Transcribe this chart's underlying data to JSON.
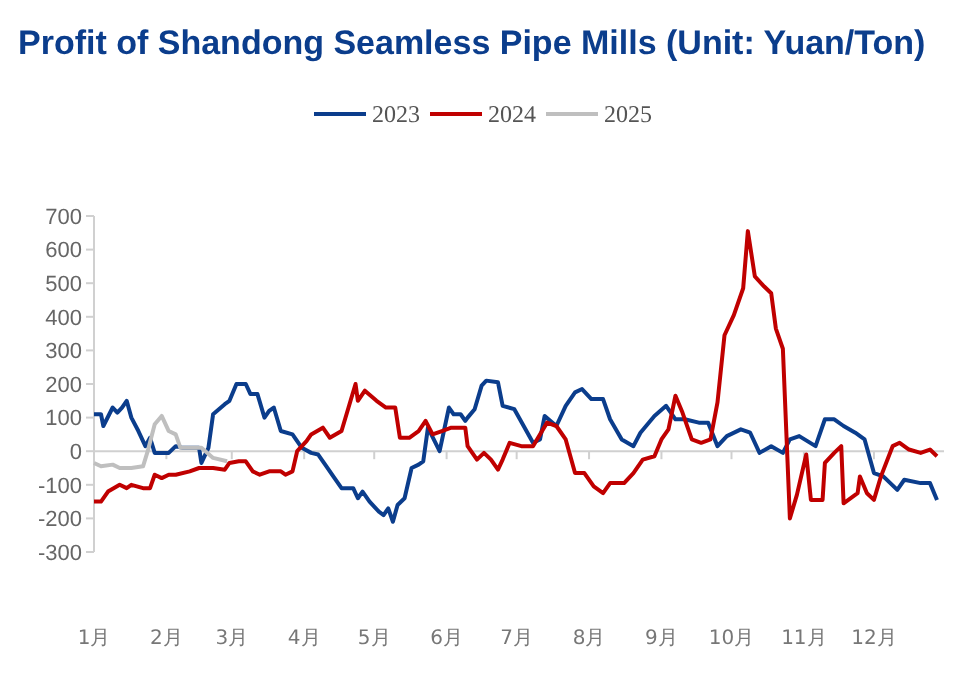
{
  "chart_data": {
    "type": "line",
    "title": "Profit of Shandong Seamless Pipe Mills (Unit: Yuan/Ton)",
    "xlim": [
      "--01-01",
      "--12-31"
    ],
    "xticks": [
      {
        "value": "--01-01",
        "label": "1月"
      },
      {
        "value": "--02-01",
        "label": "2月"
      },
      {
        "value": "--03-01",
        "label": "3月"
      },
      {
        "value": "--04-01",
        "label": "4月"
      },
      {
        "value": "--05-01",
        "label": "5月"
      },
      {
        "value": "--06-01",
        "label": "6月"
      },
      {
        "value": "--07-01",
        "label": "7月"
      },
      {
        "value": "--08-01",
        "label": "8月"
      },
      {
        "value": "--09-01",
        "label": "9月"
      },
      {
        "value": "--10-01",
        "label": "10月"
      },
      {
        "value": "--11-01",
        "label": "11月"
      },
      {
        "value": "--12-01",
        "label": "12月"
      }
    ],
    "ylim": [
      -300,
      700
    ],
    "yticks": [
      -300,
      -200,
      -100,
      0,
      100,
      200,
      300,
      400,
      500,
      600,
      700
    ],
    "ref_lines": [
      {
        "axis": "y",
        "value": 0,
        "color": "#d0d0d0",
        "line_style": "solid"
      }
    ],
    "grid": false,
    "legend": "top",
    "marker": "none",
    "line_style": "solid",
    "series": [
      {
        "name": "2023",
        "color": "#0b3d8c",
        "x": [
          "--01-01",
          "--01-04",
          "--01-05",
          "--01-09",
          "--01-11",
          "--01-13",
          "--01-15",
          "--01-17",
          "--01-20",
          "--01-23",
          "--01-25",
          "--01-27",
          "--02-02",
          "--02-05",
          "--02-08",
          "--02-15",
          "--02-16",
          "--02-19",
          "--02-21",
          "--02-26",
          "--02-28",
          "--03-03",
          "--03-07",
          "--03-09",
          "--03-12",
          "--03-15",
          "--03-17",
          "--03-19",
          "--03-22",
          "--03-27",
          "--03-29",
          "--03-31",
          "--04-04",
          "--04-07",
          "--04-10",
          "--04-14",
          "--04-17",
          "--04-22",
          "--04-24",
          "--04-26",
          "--04-29",
          "--05-03",
          "--05-05",
          "--05-07",
          "--05-09",
          "--05-11",
          "--05-14",
          "--05-17",
          "--05-20",
          "--05-22",
          "--05-24",
          "--05-29",
          "--06-02",
          "--06-04",
          "--06-07",
          "--06-09",
          "--06-10",
          "--06-13",
          "--06-16",
          "--06-18",
          "--06-23",
          "--06-25",
          "--06-30",
          "--07-04",
          "--07-08",
          "--07-11",
          "--07-13",
          "--07-18",
          "--07-22",
          "--07-26",
          "--07-29",
          "--08-02",
          "--08-07",
          "--08-10",
          "--08-15",
          "--08-20",
          "--08-23",
          "--08-29",
          "--09-03",
          "--09-07",
          "--09-11",
          "--09-17",
          "--09-21",
          "--09-25",
          "--09-29",
          "--10-05",
          "--10-09",
          "--10-13",
          "--10-18",
          "--10-23",
          "--10-26",
          "--10-30",
          "--11-06",
          "--11-10",
          "--11-14",
          "--11-18",
          "--11-23",
          "--11-27",
          "--12-01",
          "--12-05",
          "--12-11",
          "--12-14",
          "--12-21",
          "--12-25",
          "--12-28"
        ],
        "values": [
          110,
          110,
          75,
          130,
          115,
          130,
          150,
          100,
          60,
          15,
          40,
          -5,
          -5,
          15,
          10,
          10,
          -35,
          10,
          110,
          140,
          150,
          200,
          200,
          170,
          170,
          100,
          120,
          130,
          60,
          50,
          30,
          10,
          -5,
          -10,
          -40,
          -80,
          -110,
          -110,
          -140,
          -120,
          -150,
          -180,
          -190,
          -170,
          -210,
          -160,
          -140,
          -50,
          -40,
          -30,
          70,
          0,
          130,
          110,
          110,
          90,
          100,
          125,
          195,
          210,
          205,
          135,
          125,
          75,
          25,
          35,
          105,
          75,
          135,
          175,
          185,
          155,
          155,
          95,
          35,
          15,
          55,
          105,
          135,
          95,
          95,
          85,
          85,
          15,
          45,
          65,
          55,
          -5,
          15,
          -5,
          35,
          45,
          15,
          95,
          95,
          75,
          55,
          35,
          -65,
          -75,
          -115,
          -85,
          -95,
          -95,
          -145
        ]
      },
      {
        "name": "2024",
        "color": "#c00000",
        "x": [
          "--01-01",
          "--01-04",
          "--01-07",
          "--01-12",
          "--01-15",
          "--01-17",
          "--01-22",
          "--01-25",
          "--01-27",
          "--01-30",
          "--02-02",
          "--02-05",
          "--02-11",
          "--02-15",
          "--02-21",
          "--02-26",
          "--02-28",
          "--03-04",
          "--03-07",
          "--03-10",
          "--03-13",
          "--03-17",
          "--03-22",
          "--03-24",
          "--03-27",
          "--03-29",
          "--04-02",
          "--04-04",
          "--04-09",
          "--04-12",
          "--04-17",
          "--04-20",
          "--04-23",
          "--04-24",
          "--04-27",
          "--05-02",
          "--05-06",
          "--05-10",
          "--05-12",
          "--05-16",
          "--05-20",
          "--05-23",
          "--05-26",
          "--05-30",
          "--06-03",
          "--06-09",
          "--06-10",
          "--06-14",
          "--06-17",
          "--06-20",
          "--06-23",
          "--06-25",
          "--06-28",
          "--07-03",
          "--07-08",
          "--07-14",
          "--07-18",
          "--07-22",
          "--07-26",
          "--07-30",
          "--08-03",
          "--08-07",
          "--08-10",
          "--08-16",
          "--08-20",
          "--08-24",
          "--08-29",
          "--09-01",
          "--09-04",
          "--09-07",
          "--09-10",
          "--09-14",
          "--09-18",
          "--09-22",
          "--09-25",
          "--09-28",
          "--10-02",
          "--10-06",
          "--10-08",
          "--10-11",
          "--10-15",
          "--10-18",
          "--10-20",
          "--10-23",
          "--10-26",
          "--10-29",
          "--11-02",
          "--11-04",
          "--11-09",
          "--11-10",
          "--11-14",
          "--11-17",
          "--11-18",
          "--11-24",
          "--11-25",
          "--11-28",
          "--12-01",
          "--12-04",
          "--12-09",
          "--12-12",
          "--12-16",
          "--12-21",
          "--12-25",
          "--12-28"
        ],
        "values": [
          -150,
          -150,
          -120,
          -100,
          -110,
          -100,
          -110,
          -110,
          -70,
          -80,
          -70,
          -70,
          -60,
          -50,
          -50,
          -55,
          -35,
          -30,
          -30,
          -60,
          -70,
          -60,
          -60,
          -70,
          -60,
          0,
          30,
          50,
          70,
          40,
          60,
          130,
          200,
          150,
          180,
          150,
          130,
          130,
          40,
          40,
          60,
          90,
          50,
          60,
          70,
          70,
          15,
          -25,
          -5,
          -25,
          -55,
          -25,
          25,
          15,
          15,
          85,
          75,
          35,
          -65,
          -65,
          -105,
          -125,
          -95,
          -95,
          -65,
          -25,
          -15,
          35,
          65,
          165,
          115,
          35,
          25,
          35,
          145,
          345,
          405,
          485,
          655,
          520,
          490,
          470,
          365,
          305,
          -200,
          -130,
          -10,
          -145,
          -145,
          -35,
          -5,
          15,
          -155,
          -125,
          -75,
          -125,
          -145,
          -75,
          15,
          25,
          5,
          -5,
          5,
          -15
        ]
      },
      {
        "name": "2025",
        "color": "#bfbfbf",
        "x": [
          "--01-01",
          "--01-04",
          "--01-09",
          "--01-12",
          "--01-17",
          "--01-22",
          "--01-24",
          "--01-27",
          "--01-30",
          "--02-02",
          "--02-05",
          "--02-07",
          "--02-16",
          "--02-21",
          "--02-27"
        ],
        "values": [
          -35,
          -45,
          -40,
          -50,
          -50,
          -45,
          0,
          80,
          105,
          60,
          50,
          10,
          10,
          -20,
          -30
        ]
      }
    ]
  }
}
